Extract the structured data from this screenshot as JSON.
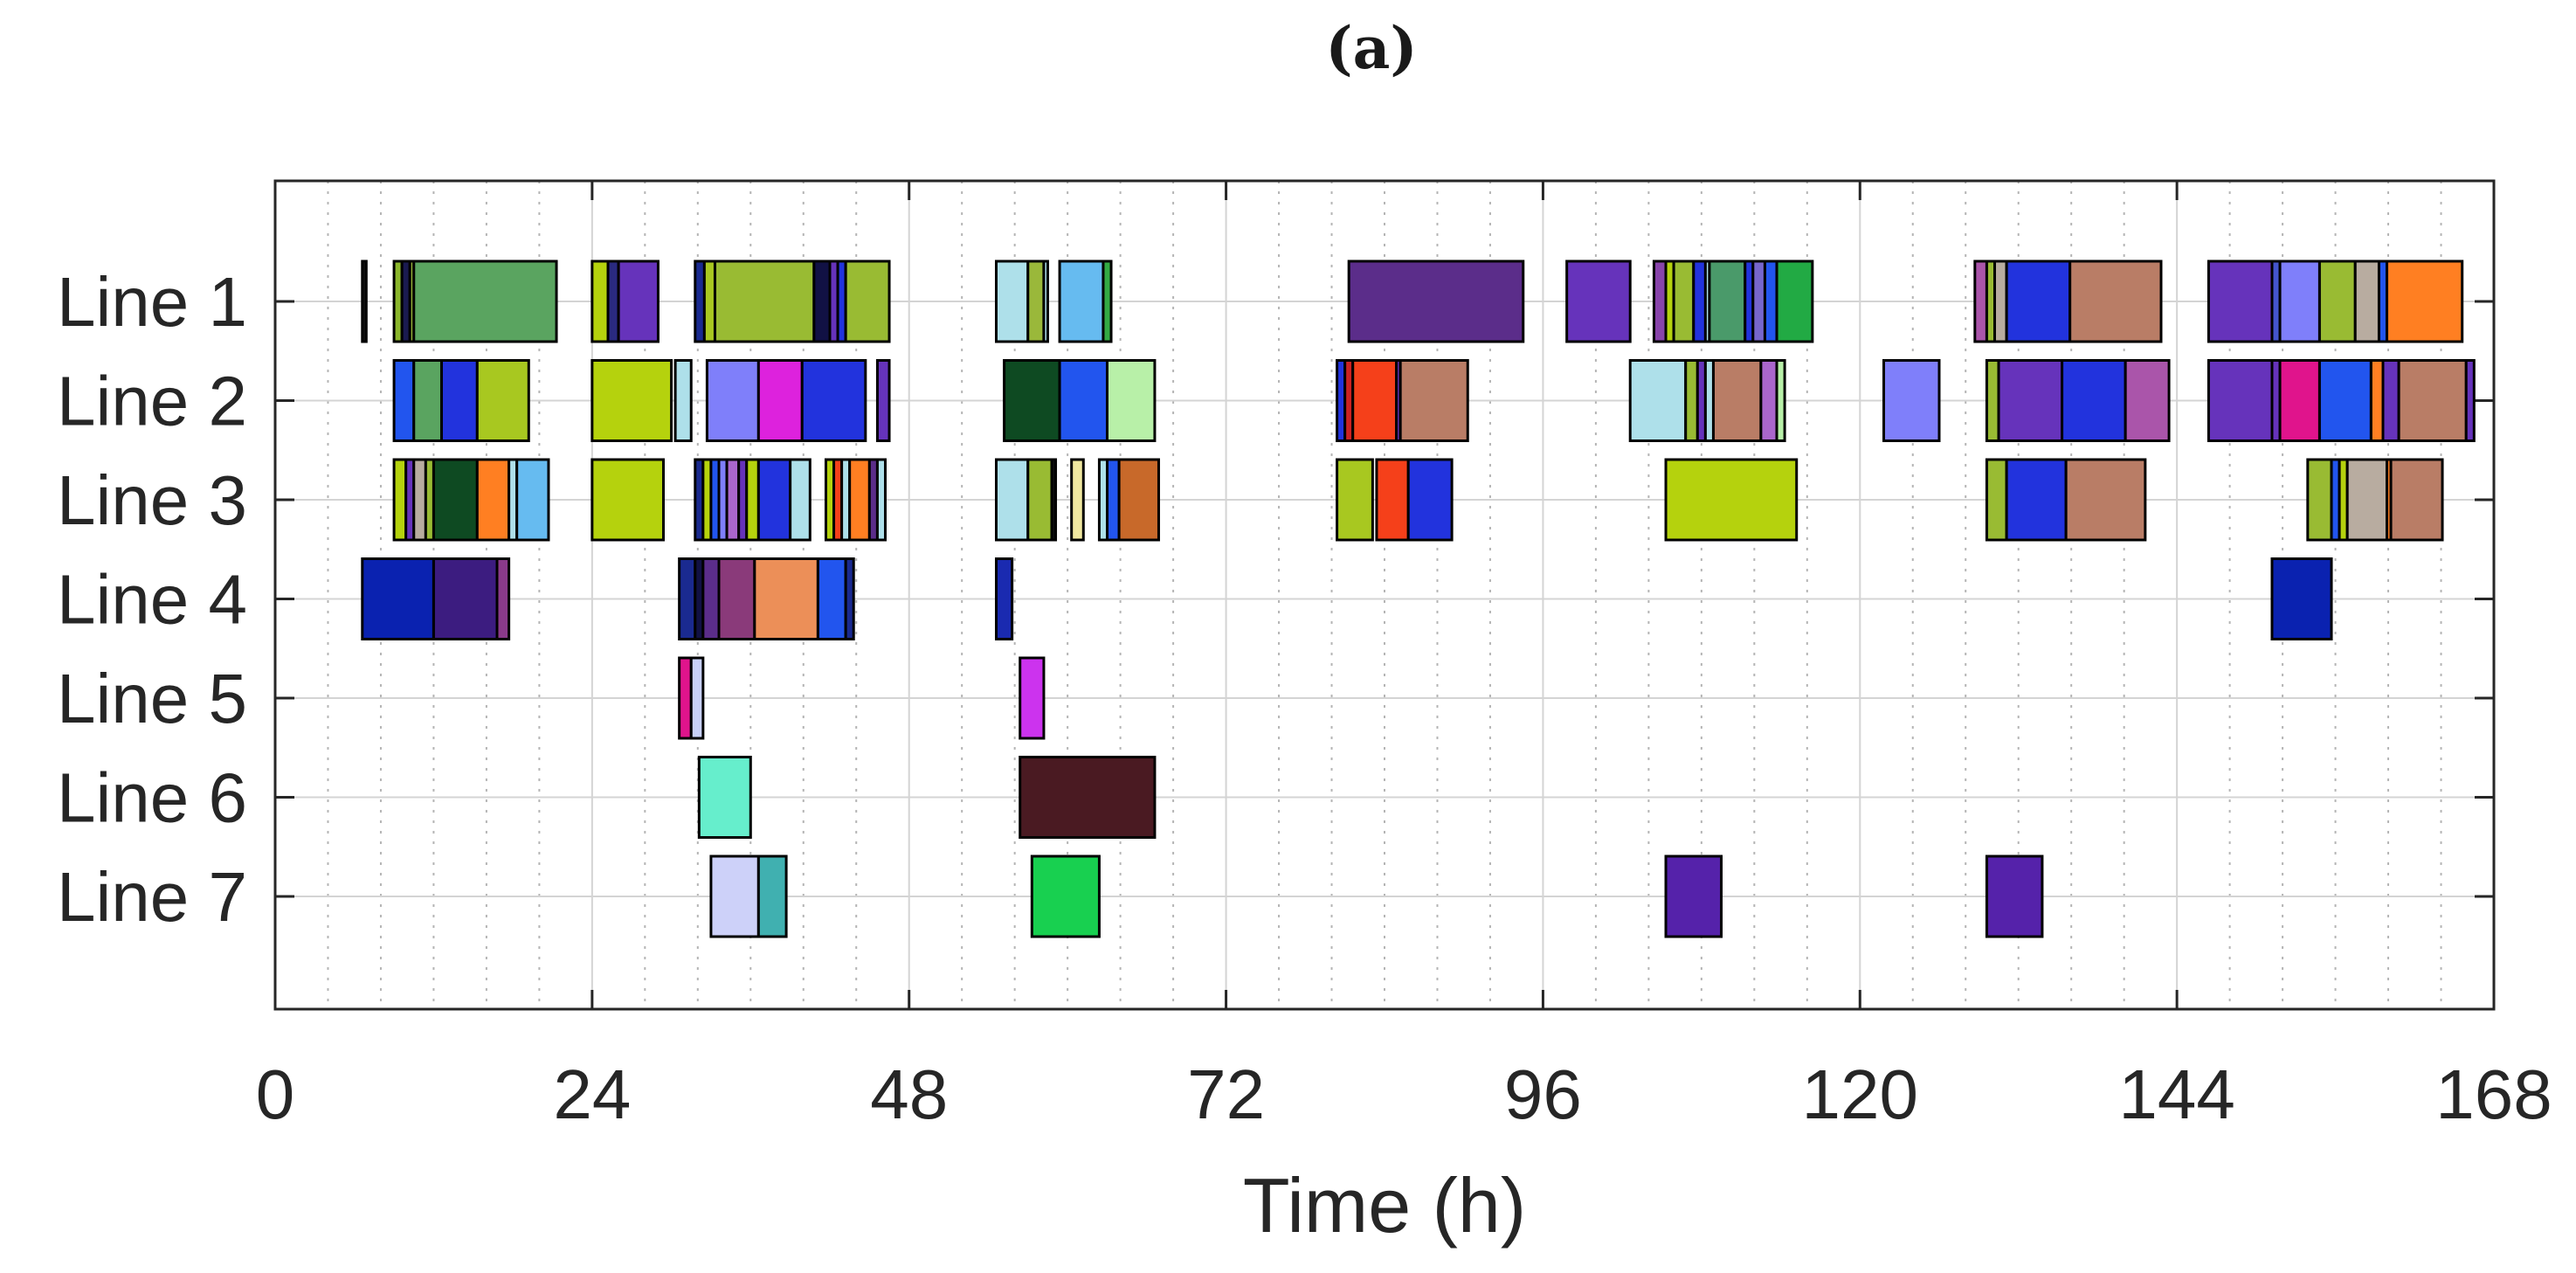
{
  "chart_data": {
    "type": "gantt",
    "panel_label": "(a)",
    "title": "",
    "xlabel": "Time (h)",
    "ylabel": "",
    "xlim": [
      0,
      168
    ],
    "x_ticks": [
      0,
      24,
      48,
      72,
      96,
      120,
      144,
      168
    ],
    "minor_grid_step": 4,
    "grid": true,
    "lines": [
      "Line 1",
      "Line 2",
      "Line 3",
      "Line 4",
      "Line 5",
      "Line 6",
      "Line 7"
    ],
    "tasks": [
      {
        "line": "Line 1",
        "start": 6.6,
        "end": 6.9,
        "color": "#111111"
      },
      {
        "line": "Line 1",
        "start": 9.0,
        "end": 9.6,
        "color": "#8bb62c"
      },
      {
        "line": "Line 1",
        "start": 9.6,
        "end": 10.2,
        "color": "#1a1a50"
      },
      {
        "line": "Line 1",
        "start": 10.2,
        "end": 10.5,
        "color": "#9ab83a"
      },
      {
        "line": "Line 1",
        "start": 10.5,
        "end": 21.3,
        "color": "#5aa460"
      },
      {
        "line": "Line 1",
        "start": 24.0,
        "end": 25.2,
        "color": "#b5d20d"
      },
      {
        "line": "Line 1",
        "start": 25.2,
        "end": 26.0,
        "color": "#2a2a80"
      },
      {
        "line": "Line 1",
        "start": 26.0,
        "end": 29.0,
        "color": "#6633bb"
      },
      {
        "line": "Line 1",
        "start": 31.8,
        "end": 32.5,
        "color": "#1a2a90"
      },
      {
        "line": "Line 1",
        "start": 32.5,
        "end": 33.3,
        "color": "#a8c820"
      },
      {
        "line": "Line 1",
        "start": 33.3,
        "end": 40.8,
        "color": "#99bb33"
      },
      {
        "line": "Line 1",
        "start": 40.8,
        "end": 42.0,
        "color": "#111144"
      },
      {
        "line": "Line 1",
        "start": 42.0,
        "end": 42.6,
        "color": "#6633bb"
      },
      {
        "line": "Line 1",
        "start": 42.6,
        "end": 43.2,
        "color": "#2233dd"
      },
      {
        "line": "Line 1",
        "start": 43.2,
        "end": 46.5,
        "color": "#99bb33"
      },
      {
        "line": "Line 1",
        "start": 54.6,
        "end": 57.0,
        "color": "#aee0ea"
      },
      {
        "line": "Line 1",
        "start": 57.0,
        "end": 58.2,
        "color": "#9ab83a"
      },
      {
        "line": "Line 1",
        "start": 58.2,
        "end": 58.5,
        "color": "#aee0ea"
      },
      {
        "line": "Line 1",
        "start": 59.4,
        "end": 62.7,
        "color": "#66bbf0"
      },
      {
        "line": "Line 1",
        "start": 62.7,
        "end": 63.3,
        "color": "#33aa44"
      },
      {
        "line": "Line 1",
        "start": 81.3,
        "end": 94.5,
        "color": "#5b2d8a"
      },
      {
        "line": "Line 1",
        "start": 97.8,
        "end": 102.6,
        "color": "#6633bb"
      },
      {
        "line": "Line 1",
        "start": 104.4,
        "end": 105.3,
        "color": "#8844aa"
      },
      {
        "line": "Line 1",
        "start": 105.3,
        "end": 105.9,
        "color": "#b5d20d"
      },
      {
        "line": "Line 1",
        "start": 105.9,
        "end": 107.4,
        "color": "#99bb33"
      },
      {
        "line": "Line 1",
        "start": 107.4,
        "end": 108.3,
        "color": "#2233dd"
      },
      {
        "line": "Line 1",
        "start": 108.3,
        "end": 108.6,
        "color": "#aee0ea"
      },
      {
        "line": "Line 1",
        "start": 108.6,
        "end": 111.3,
        "color": "#4a9a6a"
      },
      {
        "line": "Line 1",
        "start": 111.3,
        "end": 111.9,
        "color": "#2233dd"
      },
      {
        "line": "Line 1",
        "start": 111.9,
        "end": 112.8,
        "color": "#7766cc"
      },
      {
        "line": "Line 1",
        "start": 112.8,
        "end": 113.7,
        "color": "#2255ee"
      },
      {
        "line": "Line 1",
        "start": 113.7,
        "end": 116.4,
        "color": "#22aa44"
      },
      {
        "line": "Line 1",
        "start": 128.7,
        "end": 129.6,
        "color": "#aa55aa"
      },
      {
        "line": "Line 1",
        "start": 129.6,
        "end": 130.2,
        "color": "#99bb33"
      },
      {
        "line": "Line 1",
        "start": 130.2,
        "end": 131.1,
        "color": "#b8aca0"
      },
      {
        "line": "Line 1",
        "start": 131.1,
        "end": 135.9,
        "color": "#2233dd"
      },
      {
        "line": "Line 1",
        "start": 135.9,
        "end": 142.8,
        "color": "#b97d66"
      },
      {
        "line": "Line 1",
        "start": 146.4,
        "end": 151.2,
        "color": "#6633bb"
      },
      {
        "line": "Line 1",
        "start": 151.2,
        "end": 151.8,
        "color": "#4455cc"
      },
      {
        "line": "Line 1",
        "start": 151.8,
        "end": 154.8,
        "color": "#7f7ffa"
      },
      {
        "line": "Line 1",
        "start": 154.8,
        "end": 157.5,
        "color": "#99bb33"
      },
      {
        "line": "Line 1",
        "start": 157.5,
        "end": 159.3,
        "color": "#b8aca0"
      },
      {
        "line": "Line 1",
        "start": 159.3,
        "end": 159.9,
        "color": "#2255ee"
      },
      {
        "line": "Line 1",
        "start": 159.9,
        "end": 165.6,
        "color": "#ff7f22"
      },
      {
        "line": "Line 2",
        "start": 9.0,
        "end": 10.5,
        "color": "#2255ee"
      },
      {
        "line": "Line 2",
        "start": 10.5,
        "end": 12.6,
        "color": "#5aa460"
      },
      {
        "line": "Line 2",
        "start": 12.6,
        "end": 15.3,
        "color": "#2233dd"
      },
      {
        "line": "Line 2",
        "start": 15.3,
        "end": 19.2,
        "color": "#a8c820"
      },
      {
        "line": "Line 2",
        "start": 24.0,
        "end": 30.0,
        "color": "#b5d20d"
      },
      {
        "line": "Line 2",
        "start": 30.3,
        "end": 31.5,
        "color": "#aee0ea"
      },
      {
        "line": "Line 2",
        "start": 32.7,
        "end": 36.6,
        "color": "#7f7ffa"
      },
      {
        "line": "Line 2",
        "start": 36.6,
        "end": 39.9,
        "color": "#dd22dd"
      },
      {
        "line": "Line 2",
        "start": 39.9,
        "end": 44.7,
        "color": "#2233dd"
      },
      {
        "line": "Line 2",
        "start": 45.6,
        "end": 46.5,
        "color": "#6633bb"
      },
      {
        "line": "Line 2",
        "start": 55.2,
        "end": 59.4,
        "color": "#0e4a22"
      },
      {
        "line": "Line 2",
        "start": 59.4,
        "end": 63.0,
        "color": "#2255ee"
      },
      {
        "line": "Line 2",
        "start": 63.0,
        "end": 66.6,
        "color": "#b8f0a8"
      },
      {
        "line": "Line 2",
        "start": 80.4,
        "end": 81.0,
        "color": "#2233dd"
      },
      {
        "line": "Line 2",
        "start": 81.0,
        "end": 81.6,
        "color": "#cc2222"
      },
      {
        "line": "Line 2",
        "start": 81.6,
        "end": 84.9,
        "color": "#f5401a"
      },
      {
        "line": "Line 2",
        "start": 84.9,
        "end": 85.2,
        "color": "#6633bb"
      },
      {
        "line": "Line 2",
        "start": 85.2,
        "end": 90.3,
        "color": "#b97d66"
      },
      {
        "line": "Line 2",
        "start": 102.6,
        "end": 106.8,
        "color": "#aee0ea"
      },
      {
        "line": "Line 2",
        "start": 106.8,
        "end": 107.7,
        "color": "#99bb33"
      },
      {
        "line": "Line 2",
        "start": 107.7,
        "end": 108.3,
        "color": "#6633bb"
      },
      {
        "line": "Line 2",
        "start": 108.3,
        "end": 108.9,
        "color": "#aee0ea"
      },
      {
        "line": "Line 2",
        "start": 108.9,
        "end": 112.5,
        "color": "#b97d66"
      },
      {
        "line": "Line 2",
        "start": 112.5,
        "end": 113.7,
        "color": "#aa66cc"
      },
      {
        "line": "Line 2",
        "start": 113.7,
        "end": 114.3,
        "color": "#b8f0a8"
      },
      {
        "line": "Line 2",
        "start": 121.8,
        "end": 126.0,
        "color": "#7f7ffa"
      },
      {
        "line": "Line 2",
        "start": 129.6,
        "end": 130.5,
        "color": "#99bb33"
      },
      {
        "line": "Line 2",
        "start": 130.5,
        "end": 135.3,
        "color": "#6633bb"
      },
      {
        "line": "Line 2",
        "start": 135.3,
        "end": 140.1,
        "color": "#2233dd"
      },
      {
        "line": "Line 2",
        "start": 140.1,
        "end": 143.4,
        "color": "#aa55aa"
      },
      {
        "line": "Line 2",
        "start": 146.4,
        "end": 151.2,
        "color": "#6633bb"
      },
      {
        "line": "Line 2",
        "start": 151.2,
        "end": 151.8,
        "color": "#6633bb"
      },
      {
        "line": "Line 2",
        "start": 151.8,
        "end": 154.8,
        "color": "#e0148c"
      },
      {
        "line": "Line 2",
        "start": 154.8,
        "end": 158.7,
        "color": "#2255ee"
      },
      {
        "line": "Line 2",
        "start": 158.7,
        "end": 159.6,
        "color": "#ff7f22"
      },
      {
        "line": "Line 2",
        "start": 159.6,
        "end": 160.8,
        "color": "#6633bb"
      },
      {
        "line": "Line 2",
        "start": 160.8,
        "end": 165.9,
        "color": "#b97d66"
      },
      {
        "line": "Line 2",
        "start": 165.9,
        "end": 166.5,
        "color": "#6633bb"
      },
      {
        "line": "Line 3",
        "start": 9.0,
        "end": 9.9,
        "color": "#b5d20d"
      },
      {
        "line": "Line 3",
        "start": 9.9,
        "end": 10.5,
        "color": "#6633bb"
      },
      {
        "line": "Line 3",
        "start": 10.5,
        "end": 11.4,
        "color": "#b8aca0"
      },
      {
        "line": "Line 3",
        "start": 11.4,
        "end": 12.0,
        "color": "#99bb33"
      },
      {
        "line": "Line 3",
        "start": 12.0,
        "end": 15.3,
        "color": "#0e4a22"
      },
      {
        "line": "Line 3",
        "start": 15.3,
        "end": 17.7,
        "color": "#ff7f22"
      },
      {
        "line": "Line 3",
        "start": 17.7,
        "end": 18.3,
        "color": "#aee0ea"
      },
      {
        "line": "Line 3",
        "start": 18.3,
        "end": 20.7,
        "color": "#66bbf0"
      },
      {
        "line": "Line 3",
        "start": 24.0,
        "end": 29.4,
        "color": "#b5d20d"
      },
      {
        "line": "Line 3",
        "start": 31.8,
        "end": 32.4,
        "color": "#1a2a90"
      },
      {
        "line": "Line 3",
        "start": 32.4,
        "end": 33.0,
        "color": "#b5d20d"
      },
      {
        "line": "Line 3",
        "start": 33.0,
        "end": 33.6,
        "color": "#2255ee"
      },
      {
        "line": "Line 3",
        "start": 33.6,
        "end": 34.2,
        "color": "#7f7ffa"
      },
      {
        "line": "Line 3",
        "start": 34.2,
        "end": 35.1,
        "color": "#aa66cc"
      },
      {
        "line": "Line 3",
        "start": 35.1,
        "end": 35.7,
        "color": "#6633bb"
      },
      {
        "line": "Line 3",
        "start": 35.7,
        "end": 36.6,
        "color": "#b5d20d"
      },
      {
        "line": "Line 3",
        "start": 36.6,
        "end": 39.0,
        "color": "#2233dd"
      },
      {
        "line": "Line 3",
        "start": 39.0,
        "end": 40.5,
        "color": "#aee0ea"
      },
      {
        "line": "Line 3",
        "start": 41.7,
        "end": 42.3,
        "color": "#b5d20d"
      },
      {
        "line": "Line 3",
        "start": 42.3,
        "end": 42.9,
        "color": "#f5401a"
      },
      {
        "line": "Line 3",
        "start": 42.9,
        "end": 43.5,
        "color": "#aee0ea"
      },
      {
        "line": "Line 3",
        "start": 43.5,
        "end": 45.0,
        "color": "#ff7f22"
      },
      {
        "line": "Line 3",
        "start": 45.0,
        "end": 45.6,
        "color": "#5b2d8a"
      },
      {
        "line": "Line 3",
        "start": 45.6,
        "end": 46.2,
        "color": "#aee0ea"
      },
      {
        "line": "Line 3",
        "start": 54.6,
        "end": 57.0,
        "color": "#aee0ea"
      },
      {
        "line": "Line 3",
        "start": 57.0,
        "end": 58.8,
        "color": "#99bb33"
      },
      {
        "line": "Line 3",
        "start": 58.8,
        "end": 59.1,
        "color": "#111111"
      },
      {
        "line": "Line 3",
        "start": 60.3,
        "end": 61.2,
        "color": "#f0e8a0"
      },
      {
        "line": "Line 3",
        "start": 62.4,
        "end": 63.0,
        "color": "#aee0ea"
      },
      {
        "line": "Line 3",
        "start": 63.0,
        "end": 63.9,
        "color": "#2255ee"
      },
      {
        "line": "Line 3",
        "start": 63.9,
        "end": 66.9,
        "color": "#c8692a"
      },
      {
        "line": "Line 3",
        "start": 80.4,
        "end": 83.1,
        "color": "#a8c820"
      },
      {
        "line": "Line 3",
        "start": 83.4,
        "end": 85.8,
        "color": "#f5401a"
      },
      {
        "line": "Line 3",
        "start": 85.8,
        "end": 89.1,
        "color": "#2233dd"
      },
      {
        "line": "Line 3",
        "start": 105.3,
        "end": 115.2,
        "color": "#b5d20d"
      },
      {
        "line": "Line 3",
        "start": 129.6,
        "end": 131.1,
        "color": "#99bb33"
      },
      {
        "line": "Line 3",
        "start": 131.1,
        "end": 135.6,
        "color": "#2233dd"
      },
      {
        "line": "Line 3",
        "start": 135.6,
        "end": 141.6,
        "color": "#b97d66"
      },
      {
        "line": "Line 3",
        "start": 153.9,
        "end": 155.7,
        "color": "#99bb33"
      },
      {
        "line": "Line 3",
        "start": 155.7,
        "end": 156.3,
        "color": "#2255ee"
      },
      {
        "line": "Line 3",
        "start": 156.3,
        "end": 156.9,
        "color": "#b5d20d"
      },
      {
        "line": "Line 3",
        "start": 156.9,
        "end": 159.9,
        "color": "#b8aca0"
      },
      {
        "line": "Line 3",
        "start": 159.9,
        "end": 160.2,
        "color": "#ff7f22"
      },
      {
        "line": "Line 3",
        "start": 160.2,
        "end": 164.1,
        "color": "#b97d66"
      },
      {
        "line": "Line 4",
        "start": 6.6,
        "end": 12.0,
        "color": "#0a22b0"
      },
      {
        "line": "Line 4",
        "start": 12.0,
        "end": 16.8,
        "color": "#3c1c80"
      },
      {
        "line": "Line 4",
        "start": 16.8,
        "end": 17.7,
        "color": "#8a3a8a"
      },
      {
        "line": "Line 4",
        "start": 30.6,
        "end": 31.8,
        "color": "#1a2a90"
      },
      {
        "line": "Line 4",
        "start": 31.8,
        "end": 32.4,
        "color": "#111144"
      },
      {
        "line": "Line 4",
        "start": 32.4,
        "end": 33.6,
        "color": "#5b2d8a"
      },
      {
        "line": "Line 4",
        "start": 33.6,
        "end": 36.3,
        "color": "#8a3a7a"
      },
      {
        "line": "Line 4",
        "start": 36.3,
        "end": 41.1,
        "color": "#ec8f58"
      },
      {
        "line": "Line 4",
        "start": 41.1,
        "end": 43.2,
        "color": "#2255ee"
      },
      {
        "line": "Line 4",
        "start": 43.2,
        "end": 43.8,
        "color": "#1a2a90"
      },
      {
        "line": "Line 4",
        "start": 54.6,
        "end": 55.8,
        "color": "#1a2ab0"
      },
      {
        "line": "Line 4",
        "start": 151.2,
        "end": 155.7,
        "color": "#0a22b0"
      },
      {
        "line": "Line 5",
        "start": 30.6,
        "end": 31.5,
        "color": "#e0148c"
      },
      {
        "line": "Line 5",
        "start": 31.5,
        "end": 32.4,
        "color": "#c8d0f8"
      },
      {
        "line": "Line 5",
        "start": 56.4,
        "end": 58.2,
        "color": "#cc33ee"
      },
      {
        "line": "Line 6",
        "start": 32.1,
        "end": 36.0,
        "color": "#66eecc"
      },
      {
        "line": "Line 6",
        "start": 56.4,
        "end": 66.6,
        "color": "#4a1a22"
      },
      {
        "line": "Line 7",
        "start": 33.0,
        "end": 36.6,
        "color": "#cdd1f9"
      },
      {
        "line": "Line 7",
        "start": 36.6,
        "end": 38.7,
        "color": "#40b0b0"
      },
      {
        "line": "Line 7",
        "start": 57.3,
        "end": 62.4,
        "color": "#18d050"
      },
      {
        "line": "Line 7",
        "start": 105.3,
        "end": 109.5,
        "color": "#5522aa"
      },
      {
        "line": "Line 7",
        "start": 129.6,
        "end": 133.8,
        "color": "#5522aa"
      }
    ]
  }
}
